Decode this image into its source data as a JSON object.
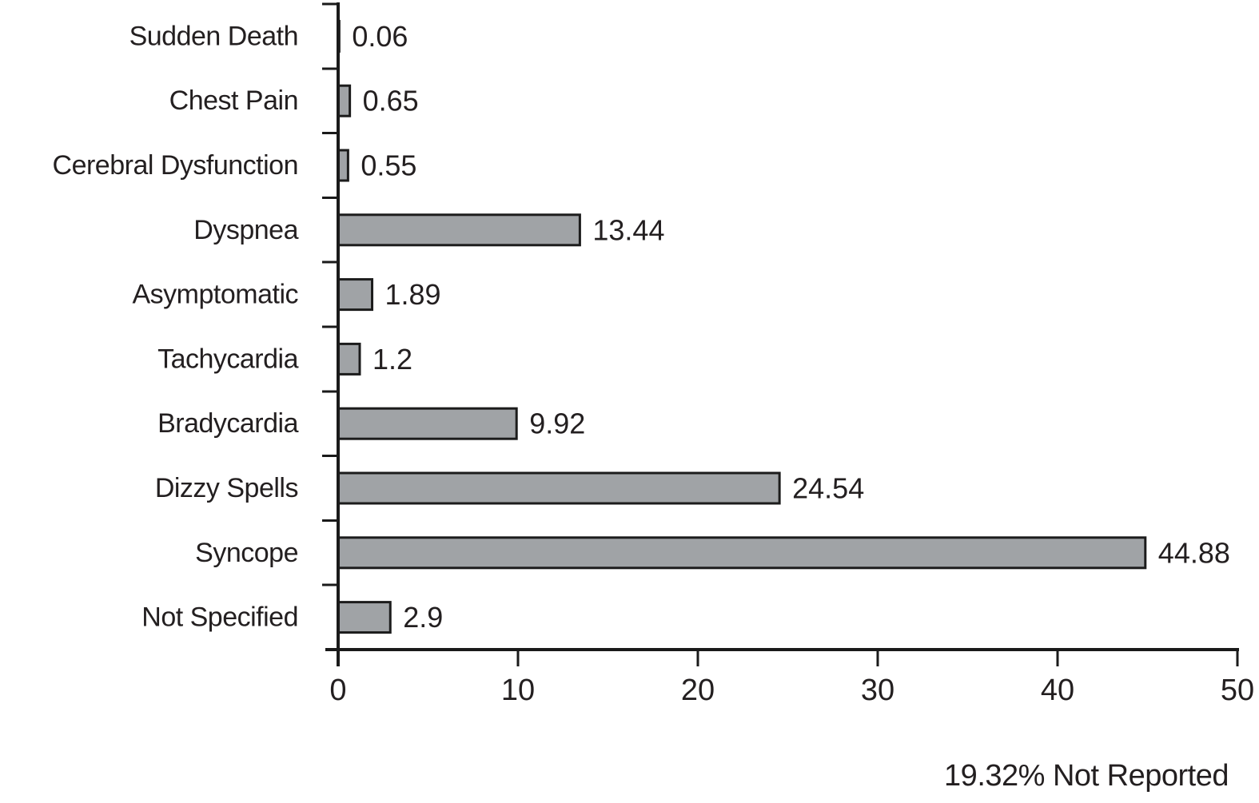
{
  "chart_data": {
    "type": "bar",
    "orientation": "horizontal",
    "title": "",
    "xlabel": "",
    "ylabel": "",
    "categories": [
      "Sudden Death",
      "Chest Pain",
      "Cerebral Dysfunction",
      "Dyspnea",
      "Asymptomatic",
      "Tachycardia",
      "Bradycardia",
      "Dizzy Spells",
      "Syncope",
      "Not Specified"
    ],
    "values": [
      0.06,
      0.65,
      0.55,
      13.44,
      1.89,
      1.2,
      9.92,
      24.54,
      44.88,
      2.9
    ],
    "value_labels": [
      "0.06",
      "0.65",
      "0.55",
      "13.44",
      "1.89",
      "1.2",
      "9.92",
      "24.54",
      "44.88",
      "2.9"
    ],
    "xlim": [
      0,
      50
    ],
    "x_ticks": [
      0,
      10,
      20,
      30,
      40,
      50
    ],
    "grid": false,
    "legend": false,
    "colors": {
      "bar_fill": "#a0a3a6",
      "bar_border": "#1c1c1c",
      "axis": "#1a1a1a",
      "text": "#231f20"
    }
  },
  "annotation": {
    "not_reported": "19.32% Not Reported"
  }
}
